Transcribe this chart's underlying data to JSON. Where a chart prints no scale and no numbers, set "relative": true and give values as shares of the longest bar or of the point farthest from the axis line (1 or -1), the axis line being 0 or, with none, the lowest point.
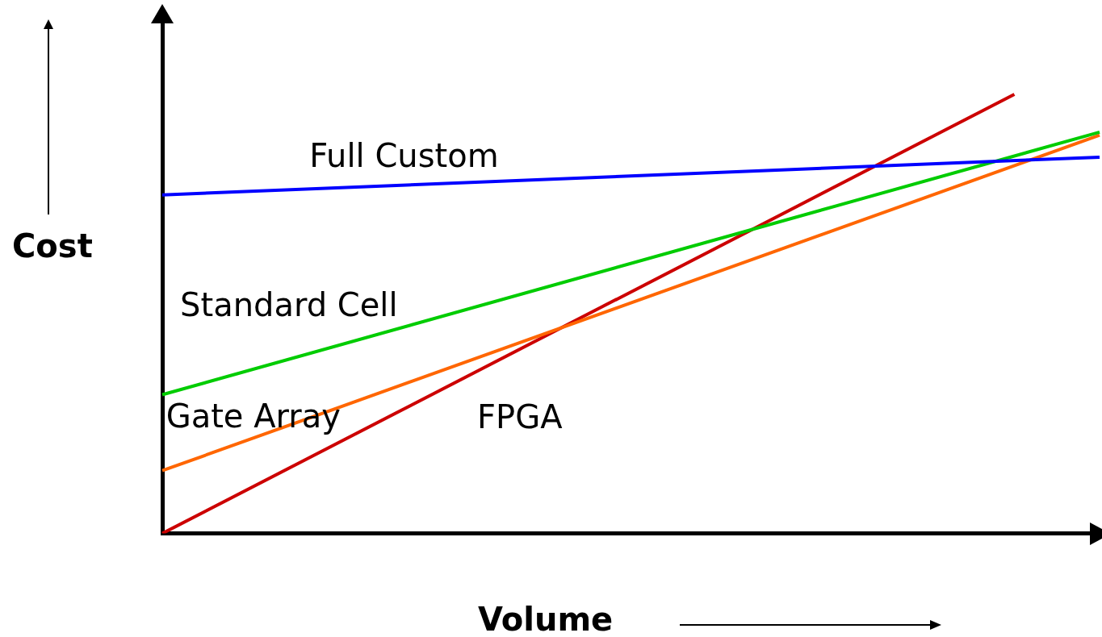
{
  "chart_data": {
    "type": "line",
    "relative": true,
    "xlabel": "Volume",
    "ylabel": "Cost",
    "marker": "none",
    "categories": [
      null,
      null,
      null,
      null,
      null,
      null,
      null,
      null,
      null,
      null,
      null,
      null
    ],
    "series": [
      {
        "name": "Full Custom",
        "color": "#0000ff",
        "values": [
          0.771,
          null,
          null,
          null,
          null,
          null,
          null,
          null,
          null,
          null,
          null,
          0.857
        ]
      },
      {
        "name": "Standard Cell",
        "color": "#00cc00",
        "values": [
          0.316,
          null,
          null,
          null,
          null,
          null,
          null,
          null,
          null,
          null,
          null,
          0.914
        ]
      },
      {
        "name": "Gate Array",
        "color": "#ff6600",
        "values": [
          0.143,
          null,
          null,
          null,
          null,
          null,
          null,
          null,
          null,
          null,
          null,
          0.907
        ]
      },
      {
        "name": "FPGA",
        "color": "#cc0000",
        "values": [
          0,
          null,
          null,
          null,
          null,
          null,
          null,
          null,
          null,
          null,
          1,
          null
        ]
      }
    ]
  }
}
